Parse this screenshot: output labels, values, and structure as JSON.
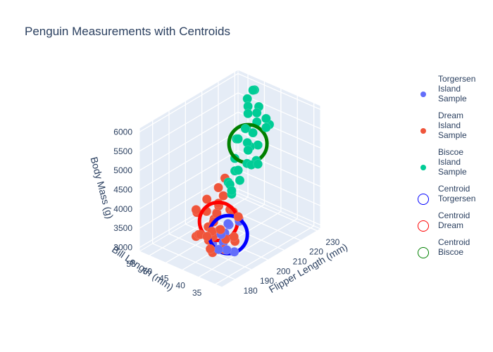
{
  "chart_data": {
    "type": "scatter3d",
    "title": "Penguin Measurements with Centroids",
    "axes": {
      "x": {
        "label": "Flipper Length (mm)",
        "range": [
          172,
          232
        ],
        "ticks": [
          180,
          190,
          200,
          210,
          220,
          230
        ]
      },
      "y": {
        "label": "Bill Length (mm)",
        "range": [
          33,
          58
        ],
        "ticks": [
          35,
          40,
          45,
          50,
          55
        ]
      },
      "z": {
        "label": "Body Mass (g)",
        "range": [
          2900,
          6100
        ],
        "ticks": [
          3000,
          3500,
          4000,
          4500,
          5000,
          5500,
          6000
        ]
      }
    },
    "series": [
      {
        "name": "Torgersen Island Sample",
        "label_lines": [
          "Torgersen",
          "Island",
          "Sample"
        ],
        "color": "#636efa",
        "points": [
          [
            186,
            40.2,
            3650
          ],
          [
            190,
            41.1,
            3550
          ],
          [
            181,
            38.5,
            3450
          ],
          [
            195,
            39.2,
            3800
          ],
          [
            193,
            41.6,
            3700
          ],
          [
            196,
            42.8,
            3550
          ],
          [
            187,
            36.7,
            3300
          ],
          [
            184,
            37.5,
            3400
          ],
          [
            191,
            42.0,
            3250
          ],
          [
            192,
            45.8,
            3050
          ]
        ]
      },
      {
        "name": "Dream Island Sample",
        "label_lines": [
          "Dream",
          "Island",
          "Sample"
        ],
        "color": "#ef553b",
        "points": [
          [
            178,
            39.5,
            3500
          ],
          [
            181,
            40.3,
            3300
          ],
          [
            180,
            41.5,
            3700
          ],
          [
            183,
            38.9,
            3900
          ],
          [
            185,
            42.1,
            3550
          ],
          [
            187,
            39.8,
            3250
          ],
          [
            188,
            43.5,
            3800
          ],
          [
            189,
            37.8,
            3600
          ],
          [
            190,
            40.8,
            3400
          ],
          [
            186,
            44.1,
            3700
          ],
          [
            195,
            45.2,
            3350
          ],
          [
            196,
            46.5,
            3700
          ],
          [
            200,
            47.9,
            3750
          ],
          [
            201,
            49.0,
            3500
          ],
          [
            197,
            50.1,
            3600
          ],
          [
            193,
            51.3,
            3700
          ],
          [
            195,
            52.0,
            3550
          ],
          [
            198,
            47.0,
            3900
          ],
          [
            199,
            48.8,
            3400
          ],
          [
            191,
            46.0,
            3200
          ],
          [
            205,
            50.5,
            4000
          ],
          [
            210,
            51.0,
            4100
          ],
          [
            206,
            49.5,
            3800
          ],
          [
            203,
            46.0,
            3650
          ],
          [
            192,
            50.8,
            3050
          ],
          [
            194,
            39.0,
            3950
          ],
          [
            184,
            45.5,
            3500
          ],
          [
            187,
            47.5,
            3350
          ],
          [
            199,
            43.0,
            3800
          ],
          [
            208,
            45.8,
            3300
          ],
          [
            182,
            41.0,
            3800
          ],
          [
            190,
            38.0,
            3450
          ],
          [
            202,
            52.5,
            3700
          ],
          [
            185,
            43.5,
            3400
          ]
        ]
      },
      {
        "name": "Biscoe Island Sample",
        "label_lines": [
          "Biscoe",
          "Island",
          "Sample"
        ],
        "color": "#00cc96",
        "points": [
          [
            212,
            45.0,
            5000
          ],
          [
            214,
            46.2,
            5100
          ],
          [
            215,
            47.3,
            5400
          ],
          [
            217,
            46.8,
            4900
          ],
          [
            218,
            48.5,
            5300
          ],
          [
            220,
            49.0,
            5600
          ],
          [
            222,
            50.0,
            5700
          ],
          [
            224,
            51.2,
            5800
          ],
          [
            225,
            48.8,
            5500
          ],
          [
            226,
            50.5,
            6000
          ],
          [
            228,
            49.7,
            5550
          ],
          [
            230,
            52.0,
            5850
          ],
          [
            216,
            44.5,
            4650
          ],
          [
            213,
            45.8,
            4600
          ],
          [
            219,
            47.0,
            5200
          ],
          [
            221,
            46.5,
            4850
          ],
          [
            211,
            43.5,
            4700
          ],
          [
            215,
            49.5,
            5050
          ],
          [
            223,
            47.8,
            5350
          ],
          [
            227,
            46.0,
            5250
          ],
          [
            210,
            48.0,
            4400
          ],
          [
            209,
            46.5,
            4500
          ],
          [
            214,
            50.0,
            4550
          ],
          [
            218,
            51.5,
            4900
          ],
          [
            212,
            42.0,
            4750
          ],
          [
            221,
            44.0,
            5400
          ],
          [
            195,
            42.0,
            4650
          ],
          [
            200,
            44.0,
            4200
          ],
          [
            193,
            40.5,
            4600
          ],
          [
            205,
            47.5,
            4250
          ],
          [
            208,
            45.5,
            4300
          ],
          [
            224,
            45.5,
            5500
          ]
        ]
      },
      {
        "name": "Centroid Torgersen",
        "label_lines": [
          "Centroid",
          "Torgersen"
        ],
        "color": "#0000ff",
        "centroid": true,
        "points": [
          [
            190,
            40.0,
            3550
          ]
        ]
      },
      {
        "name": "Centroid Dream",
        "label_lines": [
          "Centroid",
          "Dream"
        ],
        "color": "#ff0000",
        "centroid": true,
        "points": [
          [
            193,
            44.5,
            3650
          ]
        ]
      },
      {
        "name": "Centroid Biscoe",
        "label_lines": [
          "Centroid",
          "Biscoe"
        ],
        "color": "#008000",
        "centroid": true,
        "points": [
          [
            217,
            47.5,
            4950
          ]
        ]
      }
    ]
  }
}
